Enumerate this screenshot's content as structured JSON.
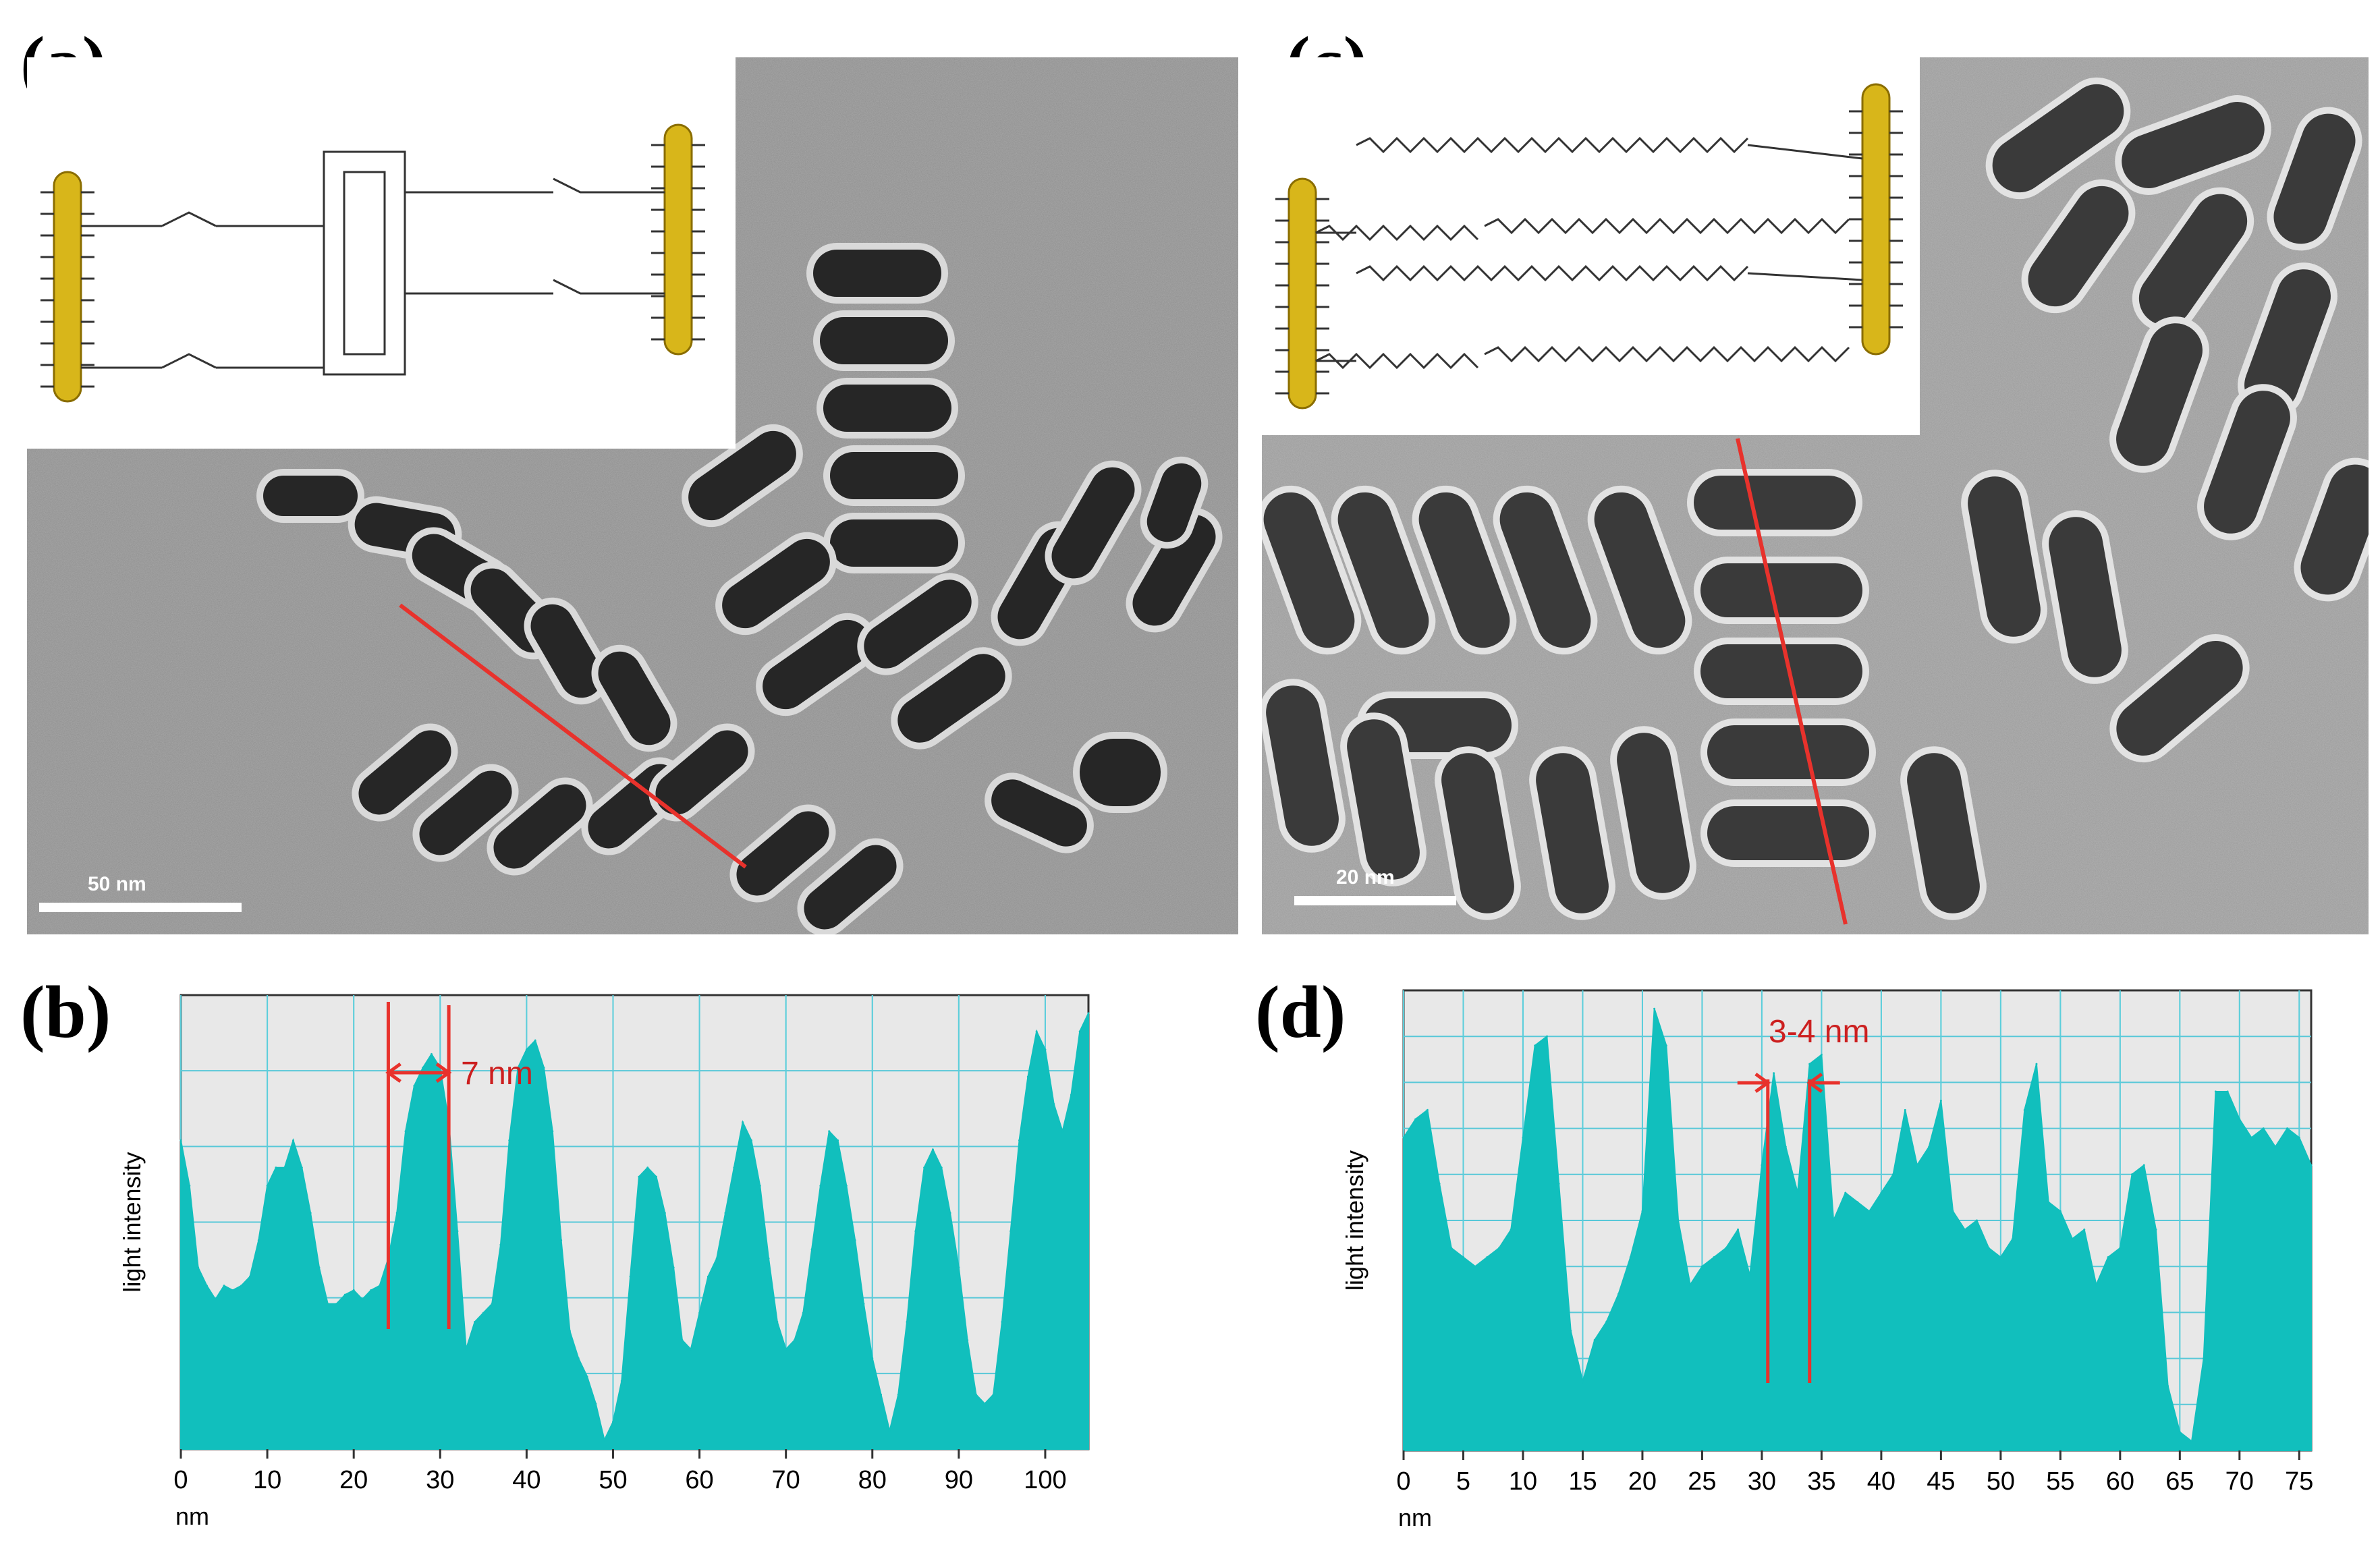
{
  "figure": {
    "panels": [
      {
        "id": "a",
        "label": "(a)",
        "scale_bar": "50 nm",
        "inset": "chemical-structure-rod-linker"
      },
      {
        "id": "c",
        "label": "(c)",
        "scale_bar": "20 nm",
        "inset": "chemical-structure-rod-alkyl-chains"
      },
      {
        "id": "b",
        "label": "(b)"
      },
      {
        "id": "d",
        "label": "(d)"
      }
    ]
  },
  "chart_data": [
    {
      "type": "area",
      "panel": "b",
      "xlabel": "nm",
      "ylabel": "light intensity",
      "xlim": [
        0,
        105
      ],
      "ylim": [
        0,
        100
      ],
      "xticks": [
        0,
        10,
        20,
        30,
        40,
        50,
        60,
        70,
        80,
        90,
        100
      ],
      "grid": true,
      "color": "#11bfbd",
      "x": [
        0,
        1,
        2,
        3,
        4,
        5,
        6,
        7,
        8,
        9,
        10,
        11,
        12,
        13,
        14,
        15,
        16,
        17,
        18,
        19,
        20,
        21,
        22,
        23,
        24,
        25,
        26,
        27,
        28,
        29,
        30,
        31,
        32,
        33,
        34,
        35,
        36,
        37,
        38,
        39,
        40,
        41,
        42,
        43,
        44,
        45,
        46,
        47,
        48,
        49,
        50,
        51,
        52,
        53,
        54,
        55,
        56,
        57,
        58,
        59,
        60,
        61,
        62,
        63,
        64,
        65,
        66,
        67,
        68,
        69,
        70,
        71,
        72,
        73,
        74,
        75,
        76,
        77,
        78,
        79,
        80,
        81,
        82,
        83,
        84,
        85,
        86,
        87,
        88,
        89,
        90,
        91,
        92,
        93,
        94,
        95,
        96,
        97,
        98,
        99,
        100,
        101,
        102,
        103,
        104,
        105
      ],
      "y": [
        68,
        58,
        40,
        36,
        33,
        36,
        35,
        36,
        38,
        46,
        58,
        62,
        62,
        68,
        62,
        52,
        40,
        32,
        32,
        34,
        35,
        33,
        35,
        36,
        42,
        52,
        70,
        80,
        84,
        87,
        84,
        72,
        48,
        22,
        28,
        30,
        32,
        45,
        68,
        84,
        88,
        90,
        84,
        70,
        46,
        26,
        20,
        16,
        10,
        2,
        6,
        15,
        38,
        60,
        62,
        60,
        52,
        40,
        24,
        22,
        30,
        38,
        42,
        52,
        62,
        72,
        68,
        58,
        42,
        28,
        22,
        24,
        30,
        44,
        58,
        70,
        68,
        58,
        46,
        32,
        20,
        12,
        4,
        12,
        28,
        48,
        62,
        66,
        62,
        52,
        40,
        24,
        12,
        10,
        12,
        28,
        48,
        68,
        82,
        92,
        88,
        76,
        70,
        78,
        92,
        96
      ]
    },
    {
      "type": "area",
      "panel": "d",
      "xlabel": "nm",
      "ylabel": "light intensity",
      "xlim": [
        0,
        76
      ],
      "ylim": [
        0,
        100
      ],
      "xticks": [
        0,
        5,
        10,
        15,
        20,
        25,
        30,
        35,
        40,
        45,
        50,
        55,
        60,
        65,
        70,
        75
      ],
      "grid": true,
      "color": "#11bfbd",
      "x": [
        0,
        1,
        2,
        3,
        4,
        5,
        6,
        7,
        8,
        9,
        10,
        11,
        12,
        13,
        14,
        15,
        16,
        17,
        18,
        19,
        20,
        21,
        22,
        23,
        24,
        25,
        26,
        27,
        28,
        29,
        30,
        31,
        32,
        33,
        34,
        35,
        36,
        37,
        38,
        39,
        40,
        41,
        42,
        43,
        44,
        45,
        46,
        47,
        48,
        49,
        50,
        51,
        52,
        53,
        54,
        55,
        56,
        57,
        58,
        59,
        60,
        61,
        62,
        63,
        64,
        65,
        66,
        67,
        68,
        69,
        70,
        71,
        72,
        73,
        74,
        75,
        76
      ],
      "y": [
        68,
        72,
        74,
        58,
        44,
        42,
        40,
        42,
        44,
        48,
        68,
        88,
        90,
        58,
        26,
        15,
        24,
        28,
        34,
        42,
        52,
        96,
        88,
        50,
        36,
        40,
        42,
        44,
        48,
        38,
        62,
        82,
        66,
        56,
        84,
        86,
        50,
        56,
        54,
        52,
        56,
        60,
        74,
        62,
        66,
        76,
        52,
        48,
        50,
        44,
        42,
        46,
        74,
        84,
        54,
        52,
        46,
        48,
        36,
        42,
        44,
        60,
        62,
        48,
        14,
        4,
        2,
        20,
        78,
        78,
        72,
        68,
        70,
        66,
        70,
        68,
        62
      ]
    }
  ],
  "annotations": {
    "b_spacing": "7  nm",
    "d_spacing": "3-4  nm"
  }
}
